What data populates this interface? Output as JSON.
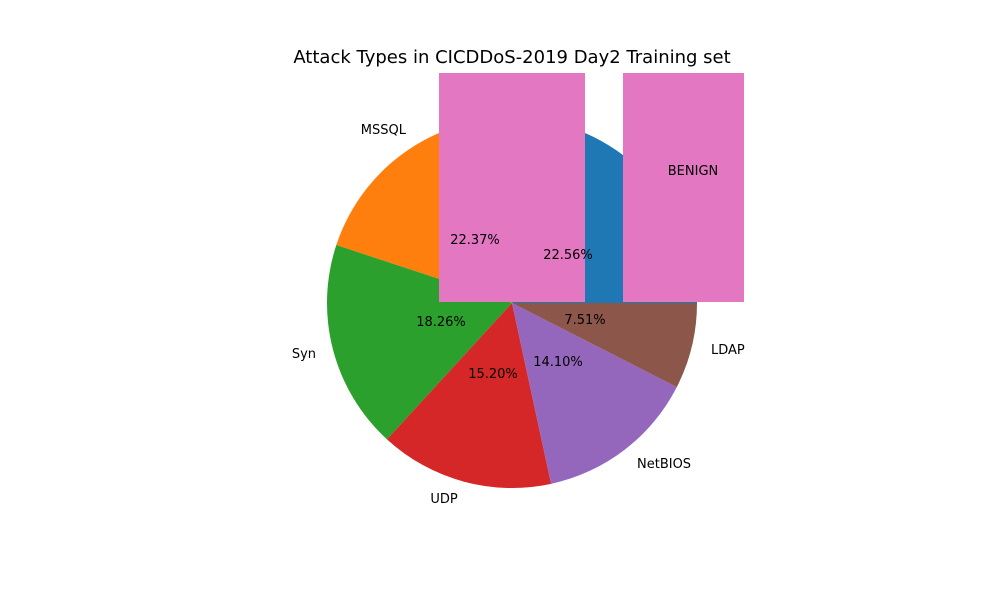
{
  "chart_data": {
    "type": "pie",
    "title": "Attack Types in CICDDoS-2019 Day2 Training set",
    "slices": [
      {
        "label": "BENIGN",
        "value": 22.56,
        "pct_text": "22.56%",
        "color": "#1f77b4"
      },
      {
        "label": "MSSQL",
        "value": 22.37,
        "pct_text": "22.37%",
        "color": "#ff7f0e"
      },
      {
        "label": "Syn",
        "value": 18.26,
        "pct_text": "18.26%",
        "color": "#2ca02c"
      },
      {
        "label": "UDP",
        "value": 15.2,
        "pct_text": "15.20%",
        "color": "#d62728"
      },
      {
        "label": "NetBIOS",
        "value": 14.1,
        "pct_text": "14.10%",
        "color": "#9467bd"
      },
      {
        "label": "LDAP",
        "value": 7.51,
        "pct_text": "7.51%",
        "color": "#8c564b"
      }
    ],
    "overlay_color": "#e377c2"
  }
}
